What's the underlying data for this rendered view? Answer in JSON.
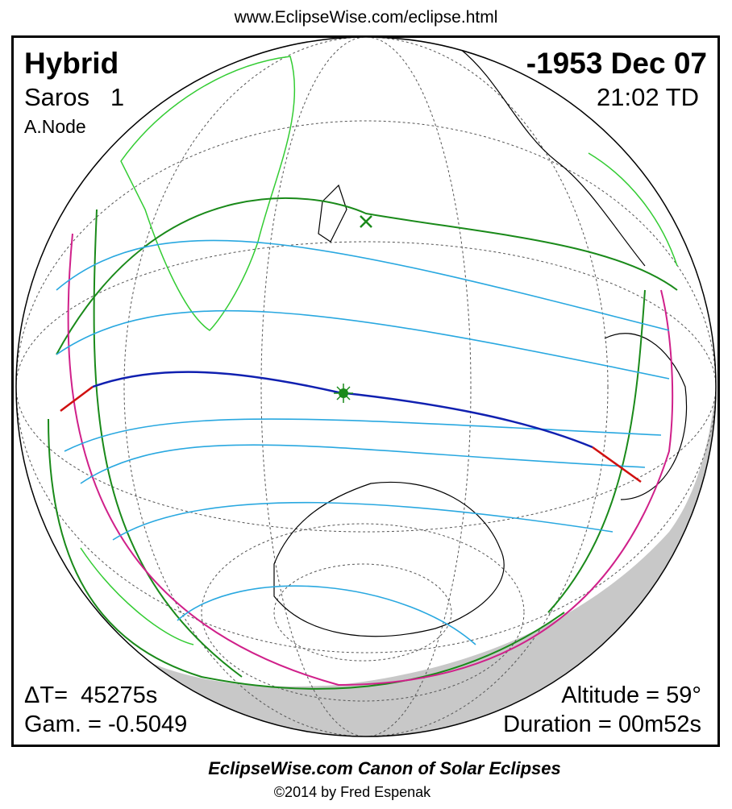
{
  "header": {
    "url": "www.EclipseWise.com/eclipse.html"
  },
  "eclipse": {
    "type": "Hybrid",
    "saros": "Saros   1",
    "node": "A.Node",
    "date": "-1953 Dec 07",
    "time": "21:02 TD",
    "delta_t": "ΔT=  45275s",
    "gamma": "Gam. = -0.5049",
    "altitude": "Altitude = 59°",
    "duration": "Duration = 00m52s"
  },
  "footer": {
    "title": "EclipseWise.com Canon of Solar Eclipses",
    "copyright": "©2014 by Fred Espenak"
  }
}
